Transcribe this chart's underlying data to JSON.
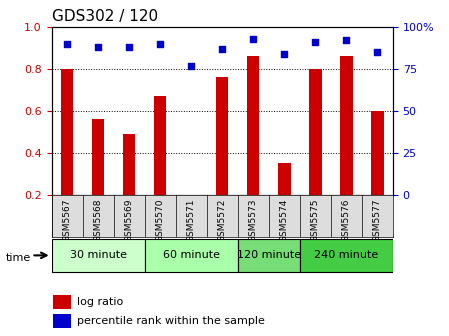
{
  "title": "GDS302 / 120",
  "samples": [
    "GSM5567",
    "GSM5568",
    "GSM5569",
    "GSM5570",
    "GSM5571",
    "GSM5572",
    "GSM5573",
    "GSM5574",
    "GSM5575",
    "GSM5576",
    "GSM5577"
  ],
  "log_ratio": [
    0.8,
    0.56,
    0.49,
    0.67,
    0.2,
    0.76,
    0.86,
    0.35,
    0.8,
    0.86,
    0.6
  ],
  "percentile": [
    0.9,
    0.88,
    0.88,
    0.9,
    0.77,
    0.87,
    0.93,
    0.84,
    0.91,
    0.92,
    0.85
  ],
  "bar_color": "#cc0000",
  "dot_color": "#0000cc",
  "ylim_left": [
    0.2,
    1.0
  ],
  "ylim_right": [
    0,
    100
  ],
  "yticks_left": [
    0.2,
    0.4,
    0.6,
    0.8,
    1.0
  ],
  "yticks_right": [
    0,
    25,
    50,
    75,
    100
  ],
  "ytick_right_labels": [
    "0",
    "25",
    "50",
    "75",
    "100%"
  ],
  "groups": [
    {
      "label": "30 minute",
      "start": 0,
      "end": 3,
      "color": "#ccffcc"
    },
    {
      "label": "60 minute",
      "start": 3,
      "end": 6,
      "color": "#aaffaa"
    },
    {
      "label": "120 minute",
      "start": 6,
      "end": 8,
      "color": "#77dd77"
    },
    {
      "label": "240 minute",
      "start": 8,
      "end": 11,
      "color": "#44cc44"
    }
  ],
  "xlabel_time": "time",
  "legend_bar_label": "log ratio",
  "legend_dot_label": "percentile rank within the sample",
  "bar_width": 0.4,
  "bar_bottom": 0.2,
  "grid_lines": [
    0.4,
    0.6,
    0.8
  ]
}
